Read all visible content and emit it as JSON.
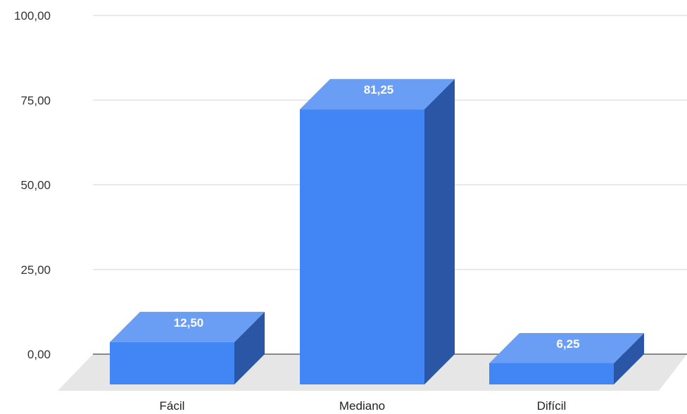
{
  "chart_data": {
    "type": "bar",
    "title": "",
    "xlabel": "",
    "ylabel": "",
    "categories": [
      "Fácil",
      "Mediano",
      "Difícil"
    ],
    "values": [
      12.5,
      81.25,
      6.25
    ],
    "value_labels": [
      "12,50",
      "81,25",
      "6,25"
    ],
    "ylim": [
      0,
      100
    ],
    "yticks": [
      0,
      25,
      50,
      75,
      100
    ],
    "ytick_labels": [
      "0,00",
      "25,00",
      "50,00",
      "75,00",
      "100,00"
    ],
    "grid": true,
    "legend": "none",
    "style": "3d",
    "colors": {
      "bar_front": "#4285f4",
      "bar_top": "#6a9ef5",
      "bar_side": "#2b56a6",
      "floor": "#e6e6e6",
      "gridline": "#dddddd",
      "baseline": "#666666"
    }
  }
}
